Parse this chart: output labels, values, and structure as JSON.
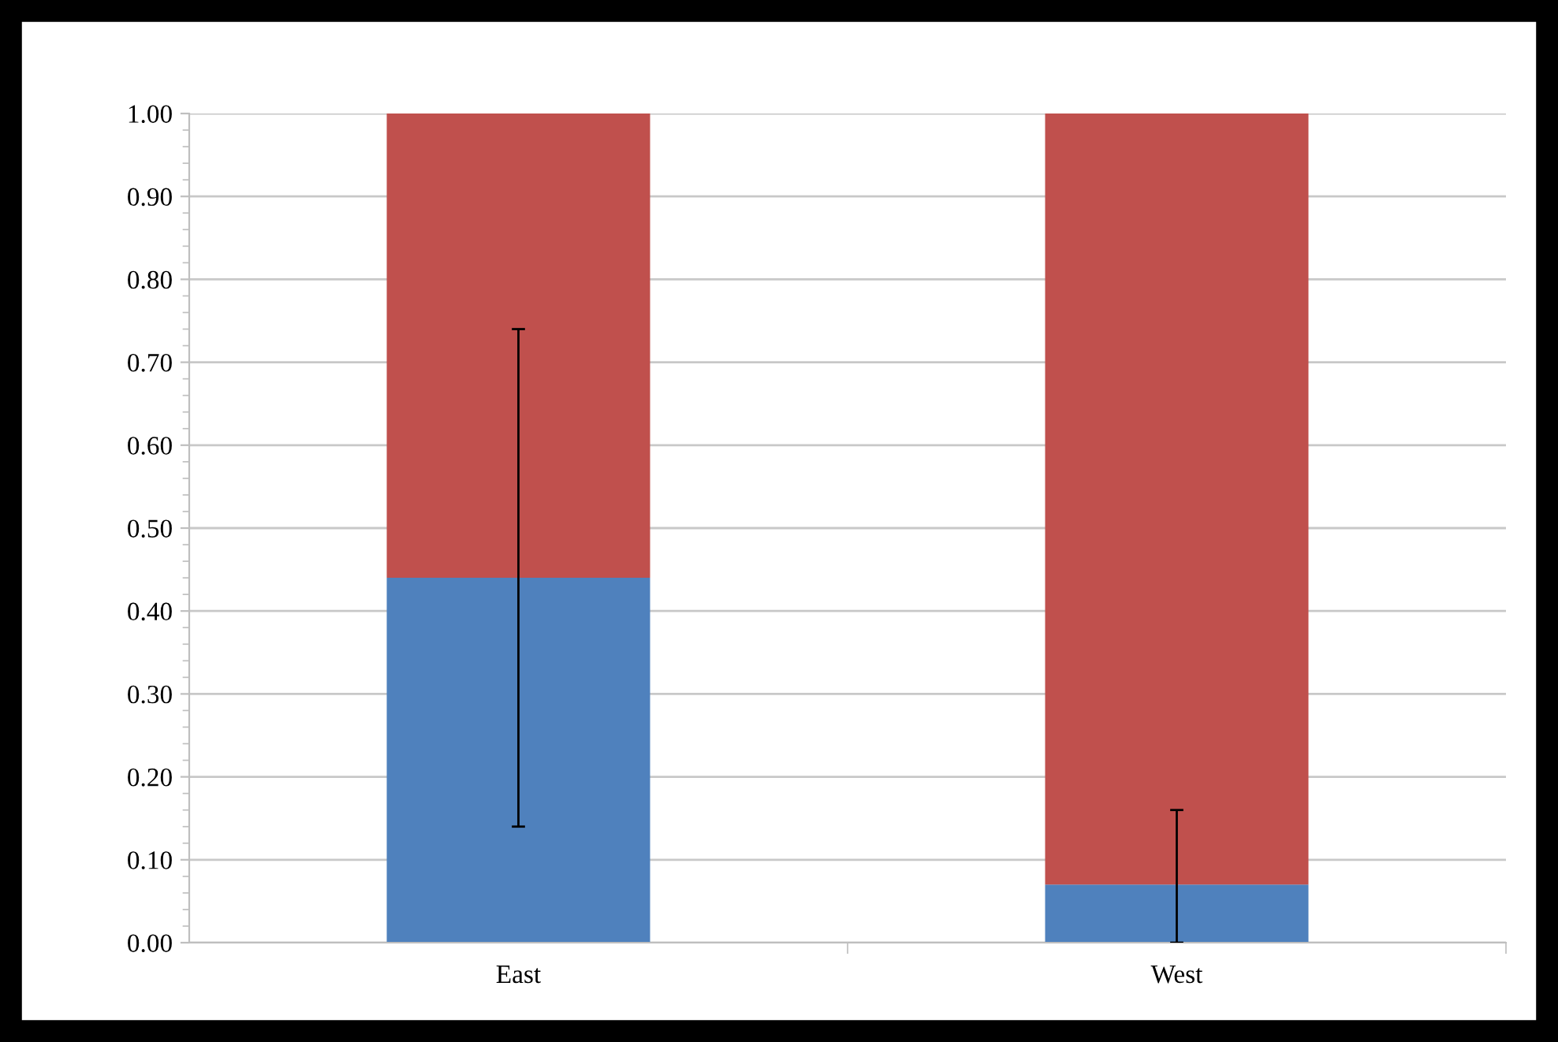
{
  "chart_data": {
    "type": "bar",
    "stacked": true,
    "categories": [
      "East",
      "West"
    ],
    "series": [
      {
        "color": "#4f81bd",
        "values": [
          0.44,
          0.07
        ],
        "errors": [
          [
            0.14,
            0.74
          ],
          [
            0.0,
            0.16
          ]
        ]
      },
      {
        "color": "#c0504d",
        "values": [
          0.56,
          0.93
        ]
      }
    ],
    "ylim": [
      0,
      1
    ],
    "yticks": [
      {
        "value": 0,
        "label": "0.00"
      },
      {
        "value": 0.1,
        "label": "0.10"
      },
      {
        "value": 0.2,
        "label": "0.20"
      },
      {
        "value": 0.3,
        "label": "0.30"
      },
      {
        "value": 0.4,
        "label": "0.40"
      },
      {
        "value": 0.5,
        "label": "0.50"
      },
      {
        "value": 0.6,
        "label": "0.60"
      },
      {
        "value": 0.7,
        "label": "0.70"
      },
      {
        "value": 0.8,
        "label": "0.80"
      },
      {
        "value": 0.9,
        "label": "0.90"
      },
      {
        "value": 1,
        "label": "1.00"
      }
    ],
    "grid": "y",
    "legend": false
  }
}
